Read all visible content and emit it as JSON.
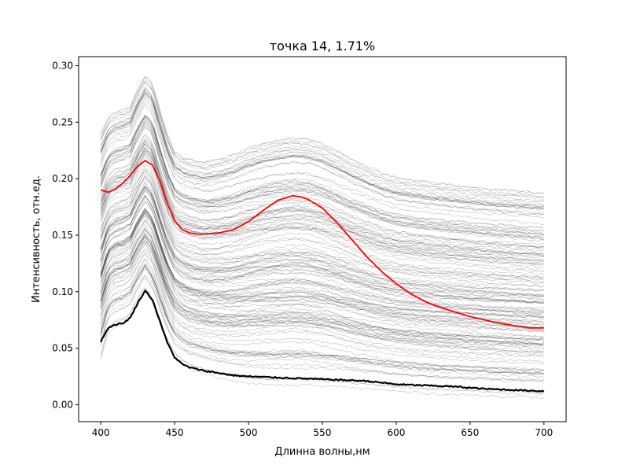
{
  "chart_data": {
    "type": "line",
    "title": "точка 14, 1.71%",
    "xlabel": "Длинна волны,нм",
    "ylabel": "Интенсивность, отн.ед.",
    "xlim": [
      385,
      715
    ],
    "ylim": [
      -0.015,
      0.308
    ],
    "xticks": [
      "400",
      "450",
      "500",
      "550",
      "600",
      "650",
      "700"
    ],
    "yticks": [
      "0.00",
      "0.05",
      "0.10",
      "0.15",
      "0.20",
      "0.25",
      "0.30"
    ],
    "grid": false,
    "legend": "none",
    "colors": {
      "background_lines": "#000000",
      "highlight": "#ff0000",
      "reference": "#000000"
    },
    "bundle": {
      "count": 150,
      "x": [
        400,
        405,
        410,
        415,
        420,
        425,
        430,
        435,
        440,
        445,
        450,
        455,
        460,
        470,
        480,
        490,
        500,
        510,
        520,
        530,
        540,
        550,
        560,
        570,
        580,
        590,
        600,
        620,
        640,
        660,
        680,
        700
      ],
      "lower_envelope": [
        0.037,
        0.062,
        0.068,
        0.07,
        0.075,
        0.088,
        0.098,
        0.088,
        0.07,
        0.052,
        0.04,
        0.034,
        0.03,
        0.026,
        0.022,
        0.019,
        0.017,
        0.016,
        0.015,
        0.015,
        0.015,
        0.014,
        0.014,
        0.013,
        0.012,
        0.011,
        0.01,
        0.008,
        0.007,
        0.006,
        0.005,
        0.004
      ],
      "upper_envelope": [
        0.24,
        0.255,
        0.26,
        0.262,
        0.265,
        0.28,
        0.292,
        0.285,
        0.262,
        0.24,
        0.225,
        0.22,
        0.218,
        0.215,
        0.218,
        0.222,
        0.228,
        0.232,
        0.235,
        0.237,
        0.236,
        0.232,
        0.225,
        0.218,
        0.212,
        0.206,
        0.202,
        0.198,
        0.195,
        0.192,
        0.19,
        0.188
      ]
    },
    "series": [
      {
        "color": "#ff0000",
        "x": [
          400,
          405,
          410,
          415,
          420,
          425,
          430,
          435,
          440,
          445,
          450,
          455,
          460,
          465,
          470,
          480,
          490,
          500,
          510,
          520,
          530,
          535,
          540,
          550,
          560,
          570,
          580,
          590,
          600,
          610,
          620,
          630,
          640,
          650,
          660,
          670,
          680,
          690,
          700
        ],
        "values": [
          0.19,
          0.188,
          0.191,
          0.196,
          0.203,
          0.211,
          0.216,
          0.212,
          0.198,
          0.178,
          0.163,
          0.155,
          0.152,
          0.151,
          0.151,
          0.152,
          0.155,
          0.162,
          0.172,
          0.181,
          0.185,
          0.184,
          0.182,
          0.174,
          0.161,
          0.146,
          0.131,
          0.118,
          0.107,
          0.098,
          0.091,
          0.086,
          0.082,
          0.078,
          0.075,
          0.072,
          0.07,
          0.068,
          0.068
        ]
      },
      {
        "color": "#000000",
        "x": [
          400,
          405,
          410,
          415,
          420,
          425,
          430,
          435,
          440,
          445,
          450,
          455,
          460,
          470,
          480,
          490,
          500,
          520,
          540,
          560,
          580,
          600,
          620,
          640,
          660,
          680,
          700
        ],
        "values": [
          0.056,
          0.068,
          0.071,
          0.072,
          0.077,
          0.09,
          0.101,
          0.093,
          0.074,
          0.055,
          0.042,
          0.036,
          0.033,
          0.03,
          0.028,
          0.026,
          0.025,
          0.024,
          0.023,
          0.022,
          0.021,
          0.018,
          0.017,
          0.016,
          0.014,
          0.013,
          0.012
        ]
      }
    ]
  }
}
